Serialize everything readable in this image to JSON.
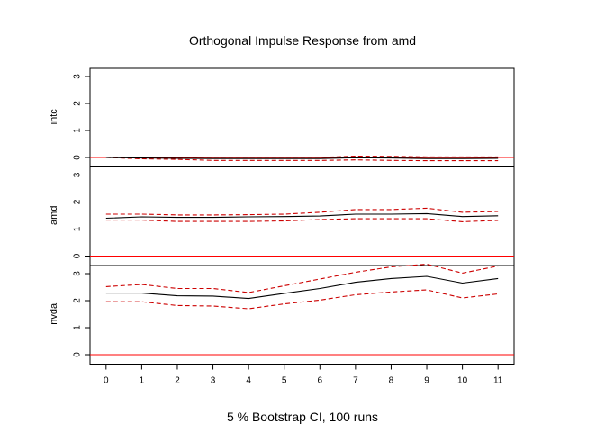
{
  "title": "Orthogonal Impulse Response from amd",
  "footer": "5 % Bootstrap CI,  100 runs",
  "colors": {
    "response": "#000000",
    "ci": "#cc0000",
    "zero_line": "#ff0000",
    "frame": "#000000"
  },
  "chart_data": {
    "type": "line",
    "title": "Orthogonal Impulse Response from amd",
    "xlabel": "5 % Bootstrap CI,  100 runs",
    "x": [
      0,
      1,
      2,
      3,
      4,
      5,
      6,
      7,
      8,
      9,
      10,
      11
    ],
    "x_ticks": [
      "0",
      "1",
      "2",
      "3",
      "4",
      "5",
      "6",
      "7",
      "8",
      "9",
      "10",
      "11"
    ],
    "ylim": [
      -0.35,
      3.3
    ],
    "y_ticks": [
      "0",
      "1",
      "2",
      "3"
    ],
    "grid": false,
    "panels": [
      {
        "name": "intc",
        "response": [
          0.0,
          -0.02,
          -0.03,
          -0.04,
          -0.04,
          -0.04,
          -0.04,
          -0.01,
          -0.02,
          -0.04,
          -0.04,
          -0.03
        ],
        "upper": [
          0.0,
          0.0,
          0.0,
          0.0,
          0.0,
          0.0,
          0.0,
          0.05,
          0.04,
          0.02,
          0.02,
          0.02
        ],
        "lower": [
          0.0,
          -0.05,
          -0.07,
          -0.11,
          -0.11,
          -0.11,
          -0.11,
          -0.09,
          -0.11,
          -0.12,
          -0.12,
          -0.12
        ]
      },
      {
        "name": "amd",
        "response": [
          1.4,
          1.45,
          1.43,
          1.43,
          1.45,
          1.46,
          1.48,
          1.55,
          1.55,
          1.57,
          1.46,
          1.49
        ],
        "upper": [
          1.55,
          1.55,
          1.52,
          1.52,
          1.53,
          1.55,
          1.62,
          1.72,
          1.72,
          1.77,
          1.62,
          1.65
        ],
        "lower": [
          1.33,
          1.33,
          1.28,
          1.28,
          1.28,
          1.3,
          1.35,
          1.38,
          1.38,
          1.38,
          1.27,
          1.32
        ]
      },
      {
        "name": "nvda",
        "response": [
          2.28,
          2.28,
          2.18,
          2.17,
          2.08,
          2.27,
          2.45,
          2.68,
          2.82,
          2.9,
          2.65,
          2.82
        ],
        "upper": [
          2.52,
          2.6,
          2.45,
          2.45,
          2.3,
          2.55,
          2.8,
          3.05,
          3.25,
          3.35,
          3.02,
          3.28
        ],
        "lower": [
          1.96,
          1.96,
          1.82,
          1.8,
          1.7,
          1.88,
          2.02,
          2.22,
          2.32,
          2.4,
          2.1,
          2.25
        ]
      }
    ]
  }
}
